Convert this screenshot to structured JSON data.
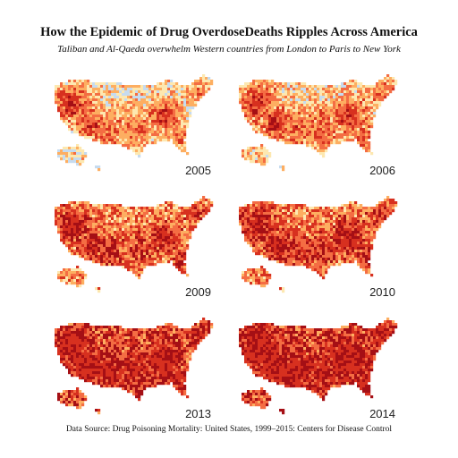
{
  "title": "How the Epidemic of Drug OverdoseDeaths Ripples Across America",
  "subtitle": "Taliban and Al-Qaeda overwhelm Western countries from London to Paris to New York",
  "source": "Data Source: Drug Poisoning Mortality: United States, 1999–2015: Centers for Disease Control",
  "colors": {
    "lowest": "#c6dbef",
    "low": "#fde8b0",
    "medium": "#fdae61",
    "high": "#f46d43",
    "highest": "#d7301f",
    "very_highest": "#a50f15"
  },
  "maps": [
    {
      "year": "2005",
      "intensity": 0.18
    },
    {
      "year": "2006",
      "intensity": 0.24
    },
    {
      "year": "2009",
      "intensity": 0.4
    },
    {
      "year": "2010",
      "intensity": 0.46
    },
    {
      "year": "2013",
      "intensity": 0.68
    },
    {
      "year": "2014",
      "intensity": 0.76
    }
  ]
}
